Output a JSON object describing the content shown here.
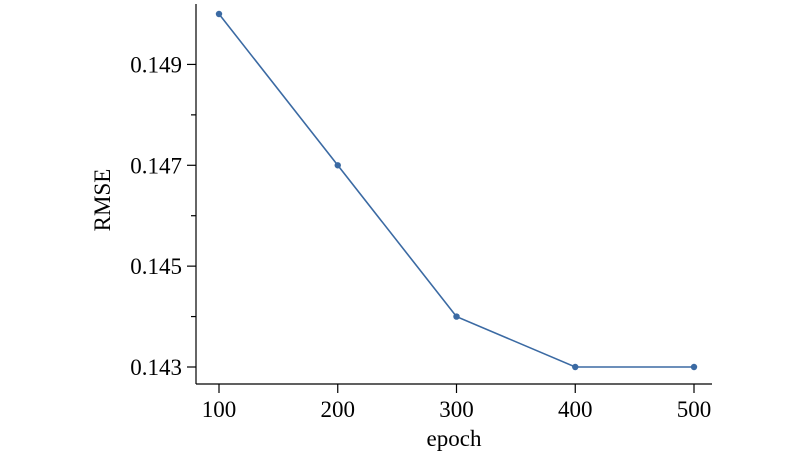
{
  "chart_data": {
    "type": "line",
    "title": "",
    "xlabel": "epoch",
    "ylabel": "RMSE",
    "x": [
      100,
      200,
      300,
      400,
      500
    ],
    "series": [
      {
        "values": [
          0.15,
          0.147,
          0.144,
          0.143,
          0.143
        ],
        "color": "#3b6aa3"
      }
    ],
    "xlim": [
      100,
      500
    ],
    "ylim": [
      0.143,
      0.15
    ],
    "xticks": [
      100,
      200,
      300,
      400,
      500
    ],
    "xtick_labels": [
      "100",
      "200",
      "300",
      "400",
      "500"
    ],
    "yticks": [
      0.143,
      0.145,
      0.147,
      0.149
    ],
    "ytick_labels": [
      "0.143",
      "0.145",
      "0.147",
      "0.149"
    ],
    "y_minor_ticks": [
      0.144,
      0.146,
      0.148
    ],
    "grid": false,
    "legend": "none"
  }
}
